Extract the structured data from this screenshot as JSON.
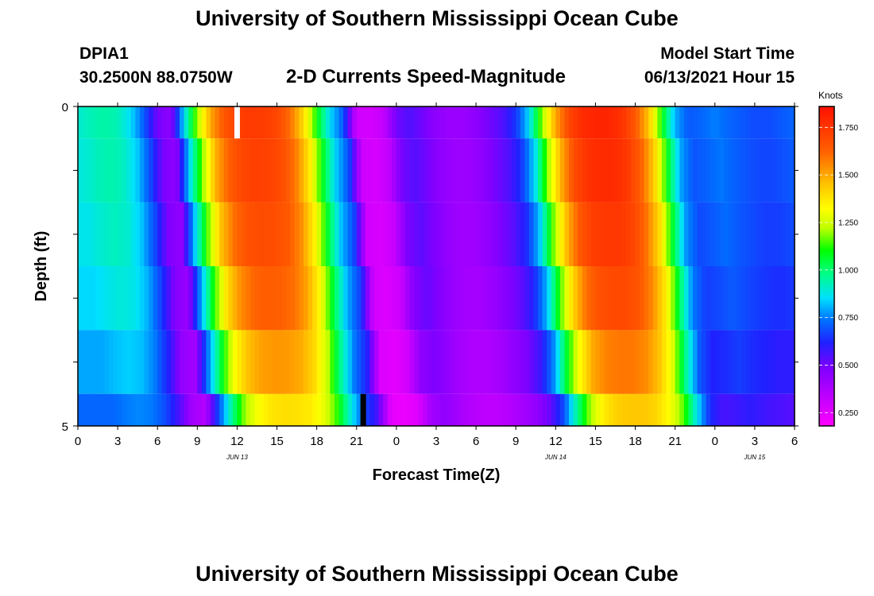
{
  "header": {
    "title": "University of Southern Mississippi Ocean Cube",
    "station_id": "DPIA1",
    "station_coords": "30.2500N  88.0750W",
    "plot_title": "2-D Currents Speed-Magnitude",
    "start_label": "Model Start Time",
    "start_value": "06/13/2021 Hour 15"
  },
  "footer": {
    "title": "University of Southern Mississippi Ocean Cube"
  },
  "chart_data": {
    "type": "heatmap",
    "xlabel": "Forecast Time(Z)",
    "ylabel": "Depth (ft)",
    "y_range": [
      0,
      5
    ],
    "y_tick_labels": [
      "0",
      "5"
    ],
    "x_tick_labels": [
      "0",
      "3",
      "6",
      "9",
      "12",
      "15",
      "18",
      "21",
      "0",
      "3",
      "6",
      "9",
      "12",
      "15",
      "18",
      "21",
      "0",
      "3",
      "6"
    ],
    "date_labels": [
      {
        "text": "JUN 13",
        "hour": 12
      },
      {
        "text": "JUN 14",
        "hour": 36
      },
      {
        "text": "JUN 15",
        "hour": 51
      }
    ],
    "colorbar": {
      "unit": "Knots",
      "min": 0.18,
      "max": 1.86,
      "tick_values": [
        0.25,
        0.5,
        0.75,
        1.0,
        1.25,
        1.5,
        1.75
      ],
      "tick_labels": [
        "0.250",
        "0.500",
        "0.750",
        "1.000",
        "1.250",
        "1.500",
        "1.750"
      ]
    },
    "hours": [
      0,
      1,
      2,
      3,
      4,
      5,
      6,
      7,
      8,
      9,
      10,
      11,
      12,
      13,
      14,
      15,
      16,
      17,
      18,
      19,
      20,
      21,
      22,
      23,
      24,
      25,
      26,
      27,
      28,
      29,
      30,
      31,
      32,
      33,
      34,
      35,
      36,
      37,
      38,
      39,
      40,
      41,
      42,
      43,
      44,
      45,
      46,
      47,
      48,
      49,
      50,
      51,
      52,
      53,
      54
    ],
    "depth_bands": [
      {
        "depth_start": 0.0,
        "depth_end": 0.5,
        "shift_h": 0.0,
        "scale": 1.0
      },
      {
        "depth_start": 0.5,
        "depth_end": 1.5,
        "shift_h": 0.4,
        "scale": 0.99
      },
      {
        "depth_start": 1.5,
        "depth_end": 2.5,
        "shift_h": 0.8,
        "scale": 0.97
      },
      {
        "depth_start": 2.5,
        "depth_end": 3.5,
        "shift_h": 1.3,
        "scale": 0.94
      },
      {
        "depth_start": 3.5,
        "depth_end": 4.5,
        "shift_h": 1.8,
        "scale": 0.88
      },
      {
        "depth_start": 4.5,
        "depth_end": 5.0,
        "shift_h": 2.6,
        "scale": 0.8
      }
    ],
    "surface_speed_knots": [
      0.9,
      0.93,
      0.95,
      0.93,
      0.85,
      0.7,
      0.5,
      0.45,
      0.85,
      1.2,
      1.5,
      1.65,
      1.72,
      1.74,
      1.73,
      1.7,
      1.6,
      1.4,
      1.1,
      0.85,
      0.7,
      0.3,
      0.28,
      0.32,
      0.5,
      0.55,
      0.5,
      0.45,
      0.42,
      0.42,
      0.45,
      0.5,
      0.55,
      0.65,
      0.85,
      1.2,
      1.5,
      1.7,
      1.78,
      1.8,
      1.8,
      1.76,
      1.65,
      1.45,
      1.1,
      0.8,
      0.7,
      0.72,
      0.75,
      0.72,
      0.7,
      0.68,
      0.68,
      0.7,
      0.72
    ],
    "markers": [
      {
        "hour": 12,
        "depth_from": 0.0,
        "depth_to": 0.5,
        "color": "#ffffff"
      },
      {
        "hour": 21.5,
        "depth_from": 4.5,
        "depth_to": 5.0,
        "color": "#000000"
      }
    ]
  }
}
